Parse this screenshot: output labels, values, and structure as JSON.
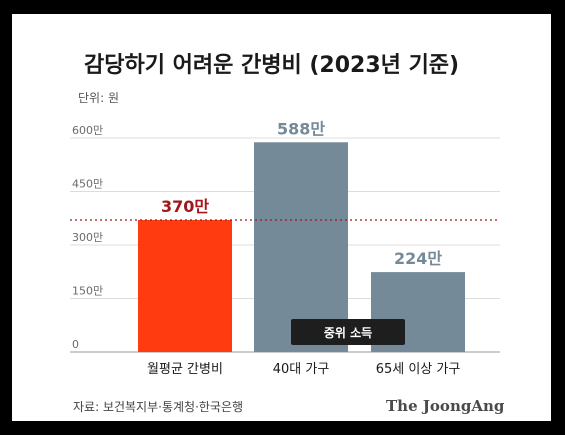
{
  "chart_data": {
    "type": "bar",
    "title": "감당하기 어려운 간병비 (2023년 기준)",
    "unit_label": "단위: 원",
    "categories": [
      "월평균 간병비",
      "40대 가구",
      "65세 이상 가구"
    ],
    "values": [
      370,
      588,
      224
    ],
    "value_labels": [
      "370만",
      "588만",
      "224만"
    ],
    "ylim": [
      0,
      600
    ],
    "yticks": [
      0,
      150,
      300,
      450,
      600
    ],
    "ytick_labels": [
      "0",
      "150만",
      "300만",
      "450만",
      "600만"
    ],
    "bar_colors": [
      "#ff3b0f",
      "#758a99",
      "#758a99"
    ],
    "value_label_colors": [
      "#a4161a",
      "#758a99",
      "#758a99"
    ],
    "grid": true,
    "reference_line": {
      "value": 370,
      "color": "#a4161a",
      "style": "dotted"
    },
    "annotation": "중위 소득",
    "source": "자료: 보건복지부·통계청·한국은행",
    "brand": "The JoongAng"
  }
}
